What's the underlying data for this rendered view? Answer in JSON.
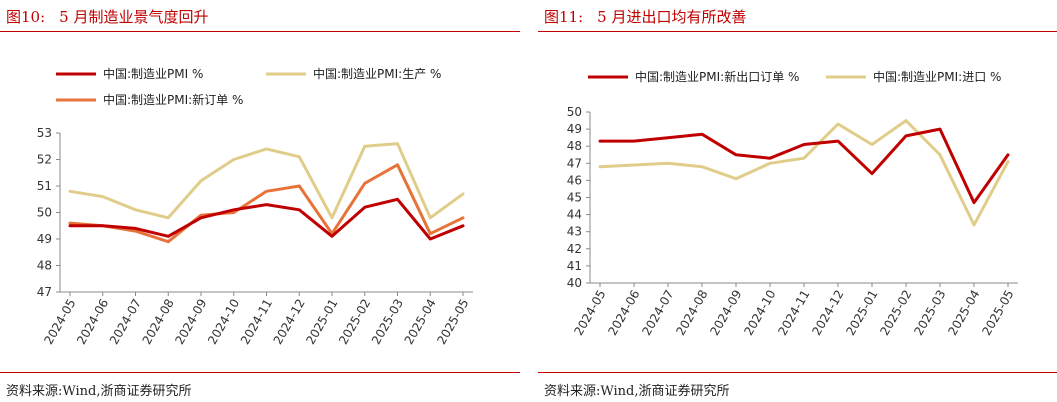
{
  "left": {
    "title_num": "图10:",
    "title_text": "5 月制造业景气度回升",
    "source": "资料来源:Wind,浙商证券研究所",
    "chart_data": {
      "type": "line",
      "categories": [
        "2024-05",
        "2024-06",
        "2024-07",
        "2024-08",
        "2024-09",
        "2024-10",
        "2024-11",
        "2024-12",
        "2025-01",
        "2025-02",
        "2025-03",
        "2025-04",
        "2025-05"
      ],
      "ylim": [
        47,
        53
      ],
      "yticks": [
        47,
        48,
        49,
        50,
        51,
        52,
        53
      ],
      "grid": false,
      "legend_position": "top-left",
      "series": [
        {
          "name": "中国:制造业PMI %",
          "color": "#c00000",
          "values": [
            49.5,
            49.5,
            49.4,
            49.1,
            49.8,
            50.1,
            50.3,
            50.1,
            49.1,
            50.2,
            50.5,
            49.0,
            49.5
          ]
        },
        {
          "name": "中国:制造业PMI:生产 %",
          "color": "#e0cd8a",
          "values": [
            50.8,
            50.6,
            50.1,
            49.8,
            51.2,
            52.0,
            52.4,
            52.1,
            49.8,
            52.5,
            52.6,
            49.8,
            50.7
          ]
        },
        {
          "name": "中国:制造业PMI:新订单 %",
          "color": "#e8733a",
          "values": [
            49.6,
            49.5,
            49.3,
            48.9,
            49.9,
            50.0,
            50.8,
            51.0,
            49.2,
            51.1,
            51.8,
            49.2,
            49.8
          ]
        }
      ]
    }
  },
  "right": {
    "title_num": "图11:",
    "title_text": "5 月进出口均有所改善",
    "source": "资料来源:Wind,浙商证券研究所",
    "chart_data": {
      "type": "line",
      "categories": [
        "2024-05",
        "2024-06",
        "2024-07",
        "2024-08",
        "2024-09",
        "2024-10",
        "2024-11",
        "2024-12",
        "2025-01",
        "2025-02",
        "2025-03",
        "2025-04",
        "2025-05"
      ],
      "ylim": [
        40,
        50
      ],
      "yticks": [
        40,
        41,
        42,
        43,
        44,
        45,
        46,
        47,
        48,
        49,
        50
      ],
      "grid": false,
      "legend_position": "top-left",
      "series": [
        {
          "name": "中国:制造业PMI:新出口订单 %",
          "color": "#c00000",
          "values": [
            48.3,
            48.3,
            48.5,
            48.7,
            47.5,
            47.3,
            48.1,
            48.3,
            46.4,
            48.6,
            49.0,
            44.7,
            47.5
          ]
        },
        {
          "name": "中国:制造业PMI:进口 %",
          "color": "#e0cd8a",
          "values": [
            46.8,
            46.9,
            47.0,
            46.8,
            46.1,
            47.0,
            47.3,
            49.3,
            48.1,
            49.5,
            47.5,
            43.4,
            47.1
          ]
        }
      ]
    }
  }
}
